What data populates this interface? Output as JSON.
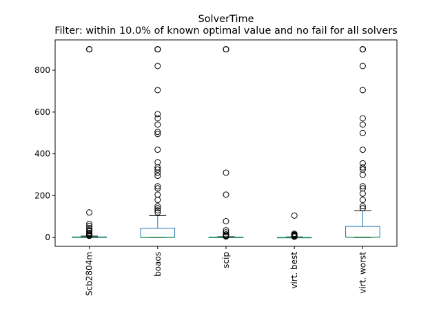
{
  "chart_data": {
    "type": "box",
    "title": "SolverTime",
    "subtitle": "Filter: within 10.0% of known optimal value and no fail for all solvers",
    "xlabel": "",
    "ylabel": "",
    "categories": [
      "Scb2804m",
      "boaos",
      "scip",
      "virt. best",
      "virt. worst"
    ],
    "ylim": [
      -42,
      945
    ],
    "yticks": [
      0,
      200,
      400,
      600,
      800
    ],
    "grid": false,
    "legend": "none",
    "colors": {
      "box": "#1f77b4",
      "median": "#2ca02c",
      "caps": "#000000",
      "outlier": "#000000"
    },
    "boxes": [
      {
        "category": "Scb2804m",
        "whislo": 0,
        "q1": 0,
        "median": 1,
        "q3": 3,
        "whishi": 7,
        "outliers": [
          900,
          900,
          900,
          120,
          65,
          55,
          45,
          35,
          30,
          22,
          18,
          14,
          10,
          8
        ]
      },
      {
        "category": "boaos",
        "whislo": 0,
        "q1": 0,
        "median": 1,
        "q3": 44,
        "whishi": 105,
        "outliers": [
          900,
          900,
          900,
          900,
          820,
          705,
          590,
          570,
          540,
          505,
          495,
          420,
          360,
          335,
          325,
          310,
          295,
          245,
          235,
          205,
          180,
          150,
          140,
          130,
          120
        ]
      },
      {
        "category": "scip",
        "whislo": 0,
        "q1": 0,
        "median": 0,
        "q3": 2,
        "whishi": 4,
        "outliers": [
          900,
          900,
          900,
          310,
          205,
          78,
          35,
          25,
          15,
          10,
          7,
          5
        ]
      },
      {
        "category": "virt. best",
        "whislo": 0,
        "q1": 0,
        "median": 0,
        "q3": 1,
        "whishi": 3,
        "outliers": [
          105,
          18,
          14,
          12,
          9,
          6,
          4
        ]
      },
      {
        "category": "virt. worst",
        "whislo": 0,
        "q1": 1,
        "median": 2,
        "q3": 53,
        "whishi": 128,
        "outliers": [
          900,
          900,
          900,
          900,
          820,
          705,
          570,
          540,
          500,
          420,
          355,
          335,
          325,
          300,
          245,
          235,
          210,
          180,
          150,
          140
        ]
      }
    ]
  }
}
